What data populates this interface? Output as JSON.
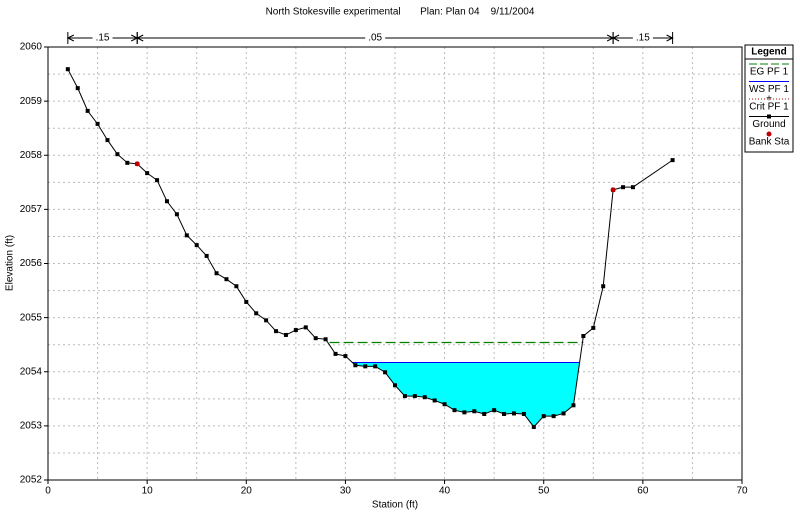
{
  "chart_data": {
    "type": "line",
    "title": "North Stokesville experimental       Plan: Plan 04    9/11/2004",
    "xlabel": "Station (ft)",
    "ylabel": "Elevation (ft)",
    "xlim": [
      0,
      70
    ],
    "ylim": [
      2052,
      2060
    ],
    "xticks": [
      0,
      10,
      20,
      30,
      40,
      50,
      60,
      70
    ],
    "yticks": [
      2052,
      2053,
      2054,
      2055,
      2056,
      2057,
      2058,
      2059,
      2060
    ],
    "grid": true,
    "legend_title": "Legend",
    "legend_position": "right",
    "roughness": [
      {
        "label": ".15",
        "x": [
          2,
          9
        ]
      },
      {
        "label": ".05",
        "x": [
          9,
          57
        ]
      },
      {
        "label": ".15",
        "x": [
          57,
          63
        ]
      }
    ],
    "levels": [
      {
        "name": "EG PF 1",
        "color": "#008000",
        "value": 2054.54,
        "x": [
          28.4,
          54
        ]
      },
      {
        "name": "WS PF 1",
        "color": "#0000ff",
        "fill": "#00ffff",
        "value": 2054.17
      },
      {
        "name": "Crit PF 1",
        "color": "#c00000"
      }
    ],
    "x": [
      2,
      3,
      4,
      5,
      6,
      7,
      8,
      9,
      10,
      11,
      12,
      13,
      14,
      15,
      16,
      17,
      18,
      19,
      20,
      21,
      22,
      23,
      24,
      25,
      26,
      27,
      28,
      29,
      30,
      31,
      32,
      33,
      34,
      35,
      36,
      37,
      38,
      39,
      40,
      41,
      42,
      43,
      44,
      45,
      46,
      47,
      48,
      49,
      50,
      51,
      52,
      53,
      54,
      55,
      56,
      57,
      58,
      59,
      63
    ],
    "series": [
      {
        "name": "Ground",
        "color": "#000000",
        "values": [
          2059.59,
          2059.24,
          2058.82,
          2058.58,
          2058.28,
          2058.02,
          2057.86,
          2057.84,
          2057.67,
          2057.54,
          2057.15,
          2056.91,
          2056.52,
          2056.34,
          2056.14,
          2055.82,
          2055.71,
          2055.58,
          2055.29,
          2055.08,
          2054.95,
          2054.75,
          2054.68,
          2054.77,
          2054.82,
          2054.62,
          2054.6,
          2054.33,
          2054.29,
          2054.12,
          2054.1,
          2054.1,
          2053.99,
          2053.75,
          2053.55,
          2053.55,
          2053.53,
          2053.47,
          2053.4,
          2053.29,
          2053.25,
          2053.27,
          2053.22,
          2053.29,
          2053.22,
          2053.23,
          2053.22,
          2052.98,
          2053.18,
          2053.18,
          2053.23,
          2053.38,
          2054.66,
          2054.81,
          2055.58,
          2057.36,
          2057.41,
          2057.41,
          2057.91
        ]
      }
    ],
    "bank_stations": {
      "name": "Bank Sta",
      "color": "#c00000",
      "x": [
        9,
        57
      ],
      "values": [
        2057.84,
        2057.36
      ]
    }
  }
}
